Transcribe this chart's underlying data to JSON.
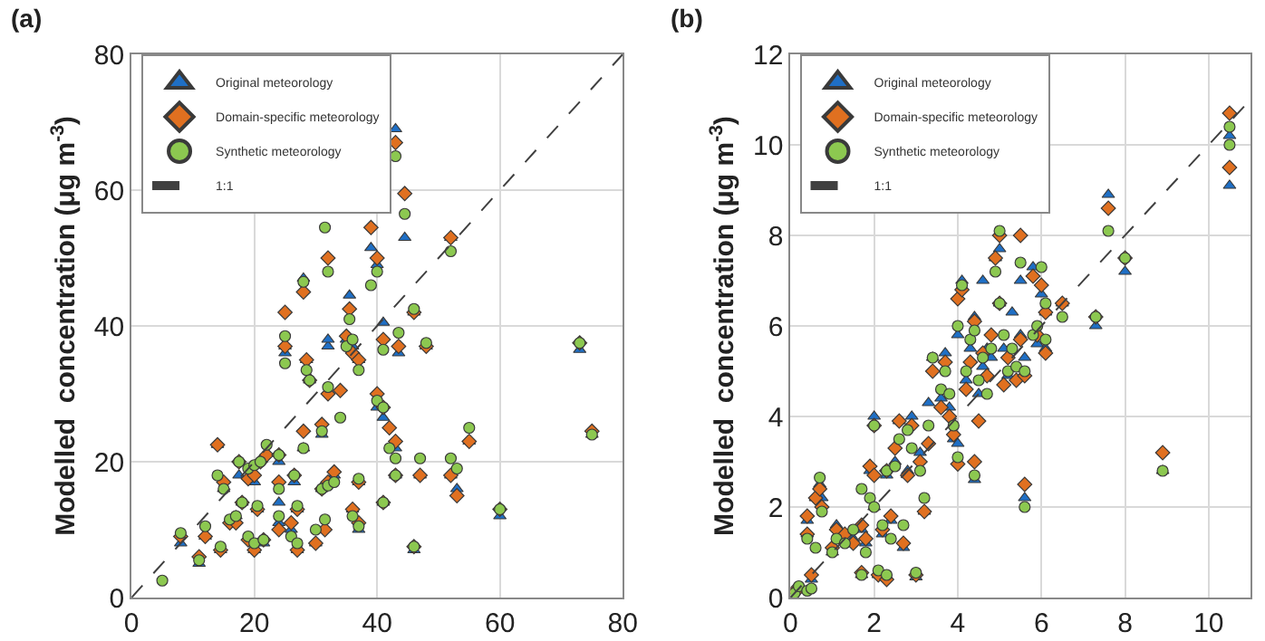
{
  "chart_data": [
    {
      "type": "scatter",
      "title": "(a)",
      "ylabel": "Modelled  concentration (μg m$^{-3}$)",
      "xlim": [
        0,
        80
      ],
      "ylim": [
        0,
        80
      ],
      "xticks": [
        0,
        20,
        40,
        60,
        80
      ],
      "yticks": [
        0,
        20,
        40,
        60,
        80
      ],
      "grid": true,
      "legend": "top left",
      "x": [
        5,
        8,
        11,
        12,
        14,
        14.5,
        15,
        16,
        17,
        17.5,
        18,
        19,
        19,
        20,
        20,
        20.5,
        21,
        21.5,
        22,
        24,
        24,
        24,
        25,
        25,
        26,
        26.5,
        27,
        27,
        28,
        28,
        28.5,
        29,
        30,
        31,
        31,
        31.5,
        31.5,
        32,
        32,
        32,
        33,
        34,
        35,
        35.5,
        36,
        36,
        37,
        37,
        37,
        39,
        40,
        40,
        41,
        41,
        41,
        42,
        43,
        43,
        43,
        43.5,
        44.5,
        46,
        46,
        47,
        48,
        52,
        52,
        53,
        55,
        60,
        73,
        75
      ],
      "series": [
        {
          "name": "Original meteorology",
          "color": "#1f6fc5",
          "marker": "triangle",
          "values": [
            null,
            8,
            5,
            9,
            22.5,
            7,
            16,
            null,
            12,
            18,
            14,
            null,
            null,
            17,
            7,
            13,
            null,
            8,
            null,
            20,
            14,
            11,
            36,
            37,
            10,
            17,
            7,
            13,
            47,
            22,
            35,
            32,
            8,
            24,
            16,
            null,
            null,
            37,
            38,
            null,
            18,
            null,
            38,
            44.5,
            13,
            37,
            35,
            10,
            17,
            51.5,
            49,
            28,
            40.5,
            14,
            26.5,
            null,
            69,
            22,
            18,
            36,
            53,
            42,
            7,
            18,
            37,
            53,
            18,
            16,
            23,
            12,
            36.5,
            24
          ]
        },
        {
          "name": "Domain-specific meteorology",
          "color": "#e07020",
          "marker": "diamond",
          "values": [
            null,
            9,
            6,
            9,
            22.5,
            7,
            17,
            11,
            11,
            20,
            14,
            8.5,
            17.5,
            18,
            7,
            13,
            20,
            8.5,
            21,
            21,
            17,
            10,
            42,
            37,
            11,
            18,
            7,
            13,
            45,
            24.5,
            35,
            32,
            8,
            25.5,
            16,
            null,
            10,
            50,
            30,
            17,
            18.5,
            30.5,
            38.5,
            42.5,
            13,
            36,
            35,
            11,
            17,
            54.5,
            50,
            30,
            38,
            14,
            28,
            25,
            67,
            23,
            18,
            37,
            59.5,
            42,
            7.5,
            18,
            37,
            53,
            18,
            15,
            23,
            13,
            37.5,
            24.5
          ]
        },
        {
          "name": "Synthetic meteorology",
          "color": "#8cc850",
          "marker": "circle",
          "values": [
            2.5,
            9.5,
            5.5,
            10.5,
            18,
            7.5,
            16,
            11.5,
            12,
            20,
            14,
            9,
            19,
            19.5,
            8,
            13.5,
            20,
            8.5,
            22.5,
            21,
            16,
            12,
            38.5,
            34.5,
            9,
            18,
            8,
            13.5,
            46.5,
            22,
            33.5,
            32,
            10,
            24.5,
            16,
            54.5,
            11.5,
            48,
            31,
            16.5,
            17,
            26.5,
            37,
            41,
            12,
            38,
            33.5,
            10.5,
            17.5,
            46,
            48,
            29,
            36.5,
            14,
            28,
            22,
            65,
            20.5,
            18,
            39,
            56.5,
            42.5,
            7.5,
            20.5,
            37.5,
            51,
            20.5,
            19,
            25,
            13,
            37.5,
            24
          ]
        },
        {
          "name": "1:1",
          "type": "line",
          "color": "#404040",
          "line_style": "dashed",
          "marker": "none",
          "x": [
            0,
            80
          ],
          "values": [
            0,
            80
          ]
        }
      ]
    },
    {
      "type": "scatter",
      "title": "(b)",
      "ylabel": "Modelled  concentration (μg m$^{-3}$)",
      "xlim": [
        0,
        11
      ],
      "ylim": [
        0,
        12
      ],
      "xticks": [
        0,
        2,
        4,
        6,
        8,
        10
      ],
      "yticks": [
        0,
        2,
        4,
        6,
        8,
        10,
        12
      ],
      "grid": true,
      "legend": "top left",
      "x": [
        0.1,
        0.2,
        0.4,
        0.4,
        0.5,
        0.6,
        0.7,
        0.75,
        1.0,
        1.1,
        1.3,
        1.5,
        1.7,
        1.7,
        1.8,
        1.9,
        2.0,
        2.0,
        2.1,
        2.2,
        2.3,
        2.3,
        2.4,
        2.5,
        2.6,
        2.7,
        2.8,
        2.9,
        3.0,
        3.1,
        3.2,
        3.3,
        3.4,
        3.6,
        3.7,
        3.8,
        3.9,
        4.0,
        4.0,
        4.1,
        4.2,
        4.3,
        4.4,
        4.4,
        4.5,
        4.6,
        4.6,
        4.7,
        4.8,
        4.9,
        5.0,
        5.0,
        5.1,
        5.2,
        5.3,
        5.4,
        5.5,
        5.5,
        5.6,
        5.6,
        5.8,
        5.9,
        6.0,
        6.1,
        6.1,
        6.5,
        7.3,
        7.6,
        8.0,
        8.9,
        10.5,
        10.5
      ],
      "series": [
        {
          "name": "Original meteorology",
          "color": "#1f6fc5",
          "marker": "triangle",
          "values": [
            null,
            null,
            1.7,
            1.4,
            0.4,
            2.2,
            2.5,
            2.2,
            1.0,
            1.6,
            null,
            1.3,
            0.5,
            1.5,
            1.2,
            2.8,
            4.0,
            2.0,
            0.5,
            1.4,
            null,
            2.7,
            1.7,
            3.0,
            3.9,
            1.1,
            2.8,
            4.0,
            0.45,
            3.2,
            1.9,
            4.3,
            5.3,
            4.4,
            5.4,
            4.2,
            3.5,
            5.8,
            3.4,
            7.0,
            4.8,
            5.5,
            6.2,
            2.6,
            4.5,
            7.0,
            5.1,
            5.5,
            5.3,
            7.5,
            6.5,
            7.7,
            5.5,
            4.9,
            6.3,
            null,
            7.0,
            5.8,
            5.3,
            2.2,
            7.3,
            5.6,
            6.7,
            5.5,
            6.3,
            6.5,
            6.0,
            8.9,
            7.2,
            2.8,
            10.2,
            9.1
          ]
        },
        {
          "name": "Domain-specific meteorology",
          "color": "#e07020",
          "marker": "diamond",
          "values": [
            0.15,
            0.2,
            1.8,
            1.4,
            0.5,
            2.2,
            2.4,
            2.0,
            1.1,
            1.5,
            1.4,
            1.2,
            0.55,
            1.6,
            1.3,
            2.9,
            3.8,
            2.7,
            0.5,
            1.5,
            0.4,
            2.8,
            1.8,
            3.3,
            3.9,
            1.2,
            2.7,
            3.8,
            0.5,
            3.0,
            1.9,
            3.4,
            5.0,
            4.2,
            5.2,
            4.0,
            3.6,
            6.6,
            2.95,
            6.8,
            4.6,
            5.2,
            6.1,
            3.0,
            3.9,
            null,
            5.4,
            4.9,
            5.8,
            7.5,
            6.5,
            8.0,
            4.7,
            5.3,
            null,
            4.8,
            8.0,
            5.7,
            4.9,
            2.5,
            7.1,
            5.8,
            6.9,
            5.4,
            6.3,
            6.5,
            6.2,
            8.6,
            7.5,
            3.2,
            10.7,
            9.5
          ]
        },
        {
          "name": "Synthetic meteorology",
          "color": "#8cc850",
          "marker": "circle",
          "values": [
            0.1,
            0.25,
            1.3,
            0.15,
            0.2,
            1.1,
            2.65,
            1.9,
            1.0,
            1.3,
            1.2,
            1.5,
            0.5,
            2.4,
            1.0,
            2.2,
            3.8,
            2.0,
            0.6,
            1.6,
            0.5,
            2.8,
            1.3,
            2.9,
            3.5,
            1.6,
            3.7,
            3.3,
            0.55,
            2.8,
            2.2,
            3.8,
            5.3,
            4.6,
            5.0,
            4.5,
            3.8,
            6.0,
            3.1,
            6.9,
            5.0,
            5.7,
            5.9,
            2.7,
            4.8,
            null,
            5.3,
            4.5,
            5.5,
            7.2,
            6.5,
            8.1,
            5.8,
            5.0,
            5.5,
            5.1,
            null,
            7.4,
            5.0,
            2.0,
            5.8,
            6.0,
            7.3,
            5.7,
            6.5,
            6.2,
            6.2,
            8.1,
            7.5,
            2.8,
            10.4,
            10.0
          ]
        },
        {
          "name": "1:1",
          "type": "line",
          "color": "#404040",
          "line_style": "dashed",
          "marker": "none",
          "x": [
            0,
            11
          ],
          "values": [
            0,
            11
          ]
        }
      ]
    }
  ]
}
